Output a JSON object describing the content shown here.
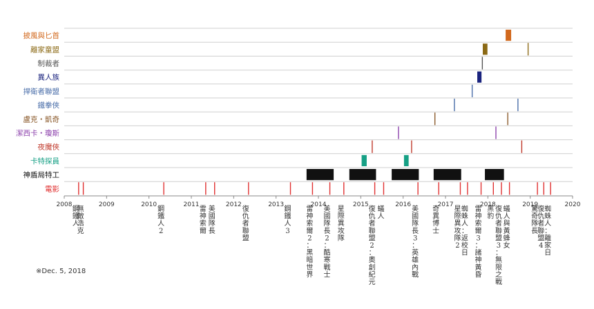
{
  "footnote": "※Dec. 5, 2018",
  "chart_data": {
    "type": "timeline",
    "xlim": [
      2008,
      2020
    ],
    "ticks": [
      "2008",
      "2009",
      "2010",
      "2011",
      "2012",
      "2013",
      "2014",
      "2015",
      "2016",
      "2017",
      "2018",
      "2019",
      "2020"
    ],
    "rows": [
      {
        "name": "披風與匕首",
        "color": "#d2691e",
        "marks": [
          {
            "start": 2018.42,
            "end": 2018.55
          }
        ]
      },
      {
        "name": "離家童盟",
        "color": "#8b6914",
        "marks": [
          {
            "start": 2017.88,
            "end": 2017.99
          },
          {
            "start": 2018.95,
            "end": 2018.95
          }
        ]
      },
      {
        "name": "制裁者",
        "color": "#555555",
        "marks": [
          {
            "start": 2017.87,
            "end": 2017.87
          }
        ]
      },
      {
        "name": "異人族",
        "color": "#1a237e",
        "marks": [
          {
            "start": 2017.75,
            "end": 2017.85
          }
        ]
      },
      {
        "name": "捍衛者聯盟",
        "color": "#4a6ea9",
        "marks": [
          {
            "start": 2017.63,
            "end": 2017.63
          }
        ]
      },
      {
        "name": "鐵拳俠",
        "color": "#4a6ea9",
        "marks": [
          {
            "start": 2017.21,
            "end": 2017.21
          },
          {
            "start": 2018.71,
            "end": 2018.71
          }
        ]
      },
      {
        "name": "盧克・凱奇",
        "color": "#8b5a2b",
        "marks": [
          {
            "start": 2016.75,
            "end": 2016.75
          },
          {
            "start": 2018.47,
            "end": 2018.47
          }
        ]
      },
      {
        "name": "潔西卡・瓊斯",
        "color": "#8e44ad",
        "marks": [
          {
            "start": 2015.89,
            "end": 2015.89
          },
          {
            "start": 2018.19,
            "end": 2018.19
          }
        ]
      },
      {
        "name": "夜魔俠",
        "color": "#c0392b",
        "marks": [
          {
            "start": 2015.27,
            "end": 2015.27
          },
          {
            "start": 2016.2,
            "end": 2016.2
          },
          {
            "start": 2018.8,
            "end": 2018.8
          }
        ]
      },
      {
        "name": "卡特探員",
        "color": "#16a085",
        "marks": [
          {
            "start": 2015.02,
            "end": 2015.14
          },
          {
            "start": 2016.02,
            "end": 2016.13
          }
        ]
      },
      {
        "name": "神盾局特工",
        "color": "#111111",
        "marks": [
          {
            "start": 2013.72,
            "end": 2014.36
          },
          {
            "start": 2014.73,
            "end": 2015.36
          },
          {
            "start": 2015.73,
            "end": 2016.37
          },
          {
            "start": 2016.72,
            "end": 2017.37
          },
          {
            "start": 2017.93,
            "end": 2018.38
          }
        ]
      },
      {
        "name": "電影",
        "color": "#e03030",
        "marks": [
          {
            "start": 2008.34,
            "end": 2008.34
          },
          {
            "start": 2008.45,
            "end": 2008.45
          },
          {
            "start": 2010.35,
            "end": 2010.35
          },
          {
            "start": 2011.34,
            "end": 2011.34
          },
          {
            "start": 2011.55,
            "end": 2011.55
          },
          {
            "start": 2012.35,
            "end": 2012.35
          },
          {
            "start": 2013.34,
            "end": 2013.34
          },
          {
            "start": 2013.86,
            "end": 2013.86
          },
          {
            "start": 2014.27,
            "end": 2014.27
          },
          {
            "start": 2014.6,
            "end": 2014.6
          },
          {
            "start": 2015.33,
            "end": 2015.33
          },
          {
            "start": 2015.54,
            "end": 2015.54
          },
          {
            "start": 2016.35,
            "end": 2016.35
          },
          {
            "start": 2016.84,
            "end": 2016.84
          },
          {
            "start": 2017.35,
            "end": 2017.35
          },
          {
            "start": 2017.52,
            "end": 2017.52
          },
          {
            "start": 2017.84,
            "end": 2017.84
          },
          {
            "start": 2018.13,
            "end": 2018.13
          },
          {
            "start": 2018.32,
            "end": 2018.32
          },
          {
            "start": 2018.51,
            "end": 2018.51
          },
          {
            "start": 2019.17,
            "end": 2019.17
          },
          {
            "start": 2019.32,
            "end": 2019.32
          },
          {
            "start": 2019.48,
            "end": 2019.48
          }
        ]
      }
    ],
    "films": [
      {
        "x": 2008.34,
        "label": "鋼鐵人"
      },
      {
        "x": 2008.45,
        "label": "無敵浩克"
      },
      {
        "x": 2010.35,
        "label": "鋼鐵人2"
      },
      {
        "x": 2011.34,
        "label": "雷神索爾"
      },
      {
        "x": 2011.55,
        "label": "美國隊長"
      },
      {
        "x": 2012.35,
        "label": "復仇者聯盟"
      },
      {
        "x": 2013.34,
        "label": "鋼鐵人3"
      },
      {
        "x": 2013.86,
        "label": "雷神索爾2：黑暗世界"
      },
      {
        "x": 2014.27,
        "label": "美國隊長2：酷寒戰士"
      },
      {
        "x": 2014.6,
        "label": "星際異攻隊"
      },
      {
        "x": 2015.33,
        "label": "復仇者聯盟2：奧創紀元"
      },
      {
        "x": 2015.54,
        "label": "蟻人"
      },
      {
        "x": 2016.35,
        "label": "美國隊長3：英雄內戰"
      },
      {
        "x": 2016.84,
        "label": "奇異博士"
      },
      {
        "x": 2017.35,
        "label": "星際異攻隊2"
      },
      {
        "x": 2017.52,
        "label": "蜘蛛人：返校日"
      },
      {
        "x": 2017.84,
        "label": "雷神索爾3：諸神黃昏"
      },
      {
        "x": 2018.13,
        "label": "黑豹"
      },
      {
        "x": 2018.32,
        "label": "復仇者聯盟3：無限之戰"
      },
      {
        "x": 2018.51,
        "label": "蟻人與黃蜂女"
      },
      {
        "x": 2019.17,
        "label": "驚奇隊長"
      },
      {
        "x": 2019.32,
        "label": "復仇者聯盟4"
      },
      {
        "x": 2019.48,
        "label": "蜘蛛人：離家日"
      }
    ]
  }
}
